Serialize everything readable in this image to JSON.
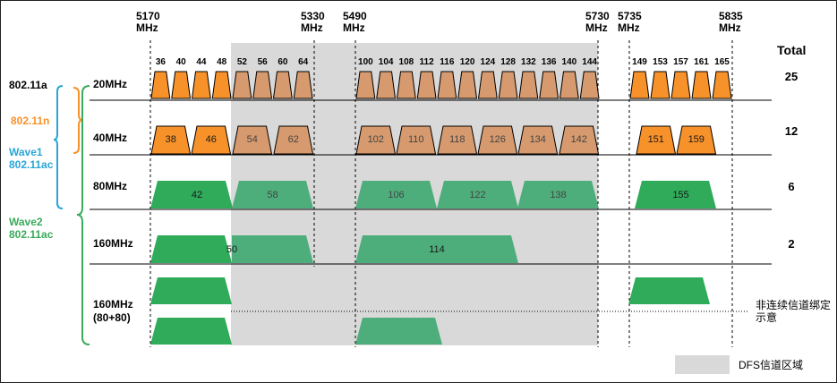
{
  "frequencies": [
    "5170\nMHz",
    "5330\nMHz",
    "5490\nMHz",
    "5730\nMHz",
    "5735\nMHz",
    "5835\nMHz"
  ],
  "channels_20": {
    "band1": [
      "36",
      "40",
      "44",
      "48"
    ],
    "band2": [
      "52",
      "56",
      "60",
      "64"
    ],
    "band3": [
      "100",
      "104",
      "108",
      "112",
      "116",
      "120",
      "124",
      "128",
      "132",
      "136",
      "140",
      "144"
    ],
    "band4": [
      "149",
      "153",
      "157",
      "161",
      "165"
    ]
  },
  "channels_40": [
    "38",
    "46",
    "54",
    "62",
    "102",
    "110",
    "118",
    "126",
    "134",
    "142",
    "151",
    "159"
  ],
  "channels_80": [
    "42",
    "58",
    "106",
    "122",
    "138",
    "155"
  ],
  "channels_160": [
    "50",
    "114"
  ],
  "rows": [
    {
      "label": "20MHz",
      "total": "25"
    },
    {
      "label": "40MHz",
      "total": "12"
    },
    {
      "label": "80MHz",
      "total": "6"
    },
    {
      "label": "160MHz",
      "total": "2"
    },
    {
      "label": "160MHz\n(80+80)",
      "total": ""
    }
  ],
  "total_header": "Total",
  "standards": {
    "a": "802.11a",
    "n": "802.11n",
    "wave1": "Wave1\n802.11ac",
    "wave2": "Wave2\n802.11ac"
  },
  "note": "非连续信道绑定\n示意",
  "legend": "DFS信道区域",
  "colors": {
    "orange": "#f7922a",
    "orange_dfs": "#d69a6e",
    "green": "#2fab5a",
    "green_dfs": "#4dae7c",
    "dfs_area": "#d9d9d9",
    "blue": "#2aa6d6",
    "green_brace": "#3aaa5a"
  }
}
